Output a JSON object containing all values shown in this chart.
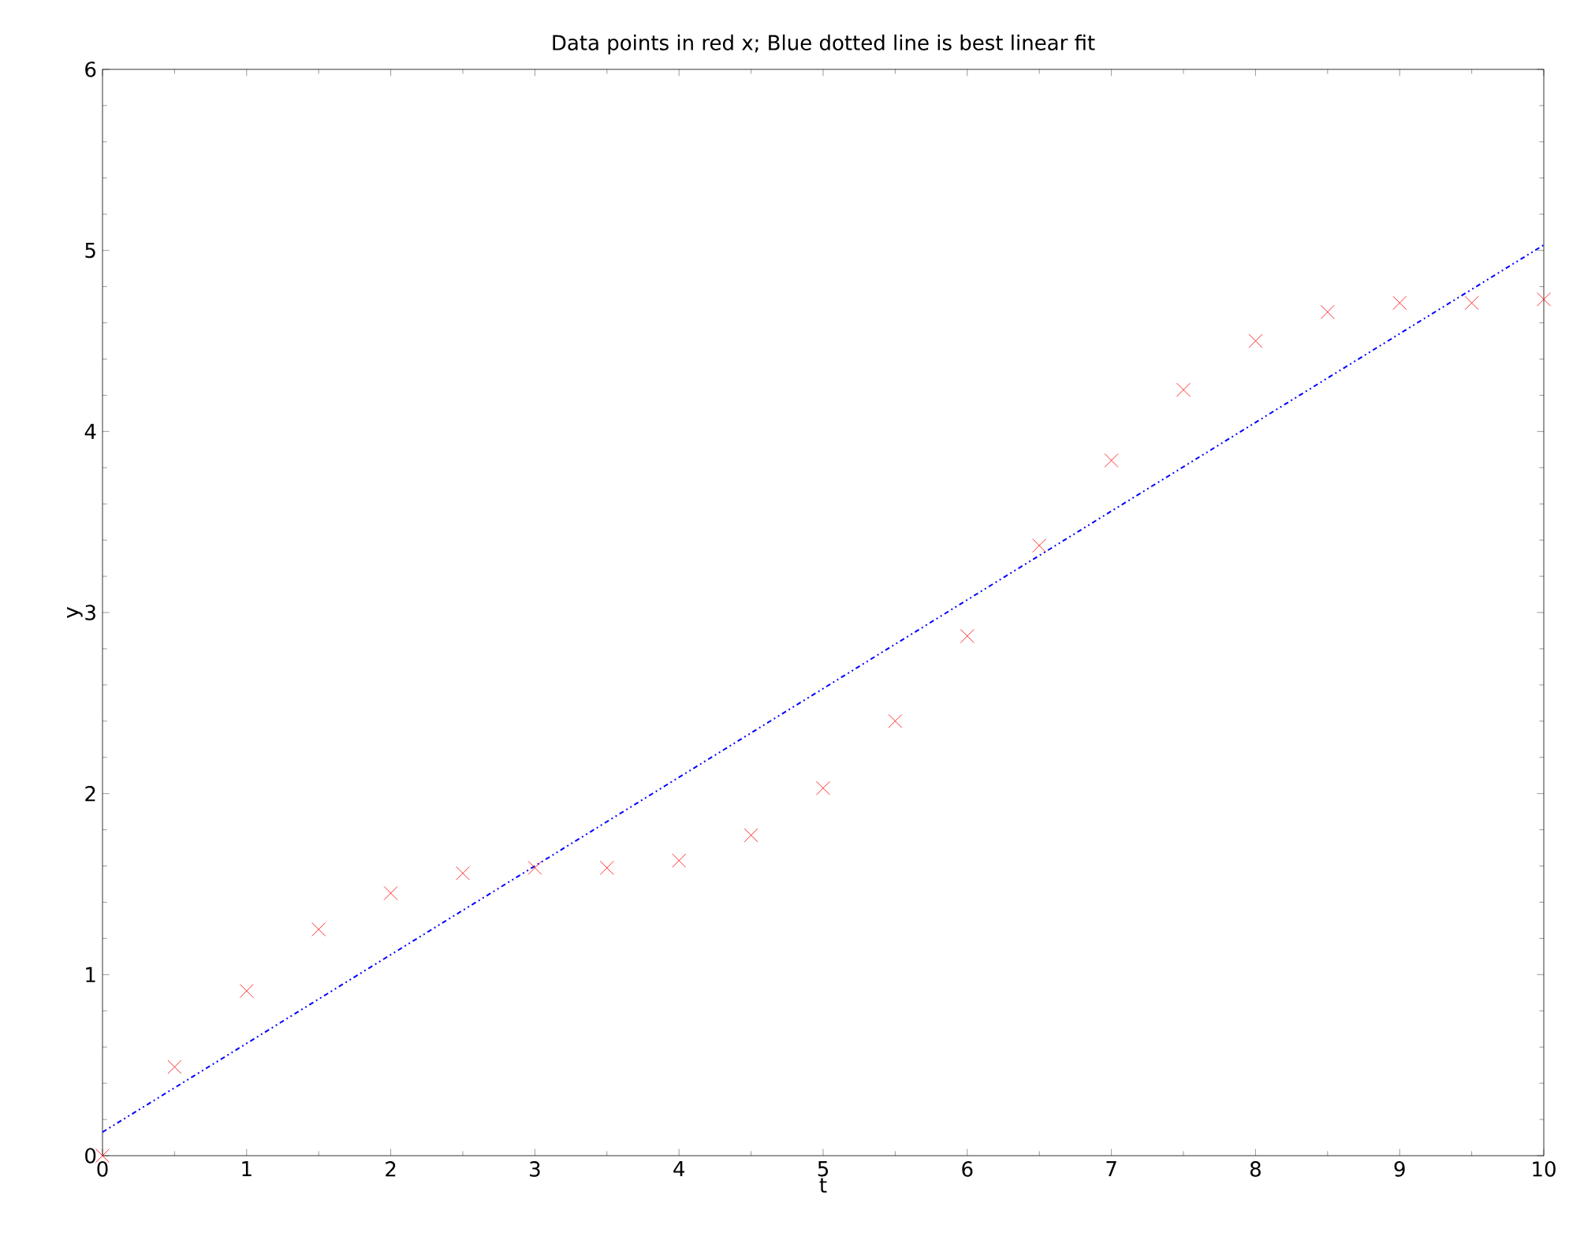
{
  "chart_data": {
    "type": "scatter",
    "title": "Data points in red x; Blue dotted line is best linear fit",
    "xlabel": "t",
    "ylabel": "y",
    "xlim": [
      0,
      10
    ],
    "ylim": [
      0,
      6
    ],
    "xticks": [
      0,
      1,
      2,
      3,
      4,
      5,
      6,
      7,
      8,
      9,
      10
    ],
    "yticks": [
      0,
      1,
      2,
      3,
      4,
      5,
      6
    ],
    "grid": false,
    "series": [
      {
        "color": "#ff0000",
        "marker": "cross",
        "x": [
          0,
          0.5,
          1,
          1.5,
          2,
          2.5,
          3,
          3.5,
          4,
          4.5,
          5,
          5.5,
          6,
          6.5,
          7,
          7.5,
          8,
          8.5,
          9,
          9.5,
          10
        ],
        "values": [
          0.0,
          0.49,
          0.91,
          1.25,
          1.45,
          1.56,
          1.59,
          1.59,
          1.63,
          1.77,
          2.03,
          2.4,
          2.87,
          3.37,
          3.84,
          4.23,
          4.5,
          4.66,
          4.71,
          4.71,
          4.73
        ]
      },
      {
        "type": "line",
        "color": "#0000ff",
        "marker": "none",
        "line_style": "dotted",
        "x": [
          0,
          10
        ],
        "values": [
          0.13,
          5.03
        ]
      }
    ]
  }
}
